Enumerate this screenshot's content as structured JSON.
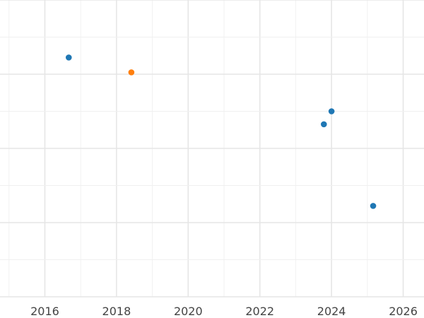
{
  "chart_data": {
    "type": "scatter",
    "title": "",
    "xlabel": "",
    "ylabel": "",
    "x_axis": {
      "kind": "date",
      "range": [
        "2014-10-01",
        "2026-08-01"
      ]
    },
    "y_axis": {
      "range": [
        -8.0,
        0.0
      ],
      "tick_labels_visible": false
    },
    "x_ticks": [
      "2016",
      "2018",
      "2020",
      "2022",
      "2024",
      "2026"
    ],
    "grid": true,
    "colors": {
      "primary": "#1f77b4",
      "highlight": "#ff7f0e",
      "grid": "#e6e6e6",
      "text": "#444444"
    },
    "points": [
      {
        "x": "2016-09-01",
        "y": -1.55,
        "color": "#1f77b4"
      },
      {
        "x": "2018-06-01",
        "y": -1.95,
        "color": "#ff7f0e"
      },
      {
        "x": "2023-10-15",
        "y": -3.35,
        "color": "#1f77b4"
      },
      {
        "x": "2024-01-01",
        "y": -3.0,
        "color": "#1f77b4"
      },
      {
        "x": "2025-03-01",
        "y": -5.55,
        "color": "#1f77b4"
      }
    ]
  }
}
